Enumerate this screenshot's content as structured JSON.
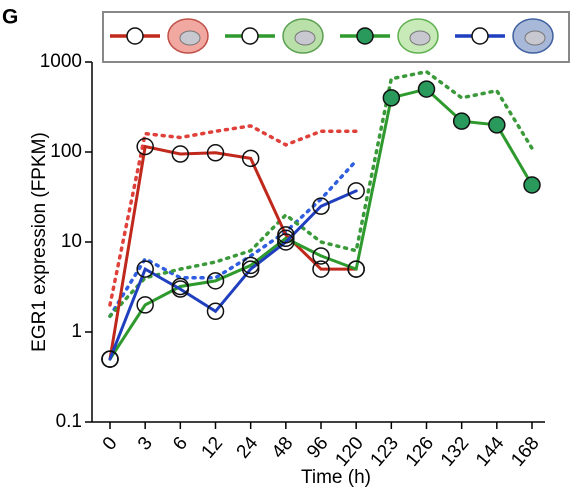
{
  "panel": "G",
  "chart_data": {
    "type": "line",
    "xlabel": "Time (h)",
    "ylabel": "EGR1 expression (FPKM)",
    "categories": [
      "0",
      "3",
      "6",
      "12",
      "24",
      "48",
      "96",
      "120",
      "123",
      "126",
      "132",
      "144",
      "168"
    ],
    "log_y": true,
    "ylim": [
      0.1,
      1000
    ],
    "yticks": [
      0.1,
      1,
      10,
      100,
      1000
    ],
    "series": [
      {
        "color": "#c0281c",
        "style": "solid",
        "marker": "open",
        "values": [
          0.5,
          115,
          95,
          98,
          85,
          12,
          5,
          5,
          null,
          null,
          null,
          null,
          null
        ]
      },
      {
        "color": "#2e9a2e",
        "style": "solid",
        "marker": "open",
        "values": [
          0.5,
          2,
          3.2,
          3.7,
          5.5,
          11,
          7,
          5,
          null,
          null,
          null,
          null,
          null
        ]
      },
      {
        "color": "#2e9a2e",
        "style": "solid",
        "marker": "filled",
        "continues": true,
        "values": [
          null,
          null,
          null,
          null,
          null,
          null,
          null,
          null,
          400,
          500,
          220,
          200,
          43
        ]
      },
      {
        "color": "#1f3fbf",
        "style": "solid",
        "marker": "open",
        "values": [
          0.5,
          5,
          3,
          1.7,
          5,
          10,
          25,
          37,
          null,
          null,
          null,
          null,
          null
        ]
      },
      {
        "color": "#e0403a",
        "style": "dotted",
        "values": [
          2,
          160,
          145,
          170,
          195,
          120,
          170,
          170,
          null,
          null,
          null,
          null,
          null
        ]
      },
      {
        "color": "#2f5fe0",
        "style": "dotted",
        "values": [
          1.5,
          6.5,
          4,
          4,
          7,
          13,
          30,
          80,
          null,
          null,
          null,
          null,
          null
        ]
      },
      {
        "color": "#3a9a3a",
        "style": "dotted",
        "values": [
          1.5,
          4,
          5,
          6,
          8,
          20,
          10,
          8,
          650,
          780,
          400,
          480,
          110
        ]
      }
    ]
  }
}
